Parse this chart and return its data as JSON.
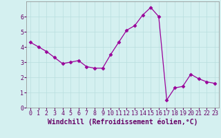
{
  "x": [
    0,
    1,
    2,
    3,
    4,
    5,
    6,
    7,
    8,
    9,
    10,
    11,
    12,
    13,
    14,
    15,
    16,
    17,
    18,
    19,
    20,
    21,
    22,
    23
  ],
  "y": [
    4.3,
    4.0,
    3.7,
    3.3,
    2.9,
    3.0,
    3.1,
    2.7,
    2.6,
    2.6,
    3.5,
    4.3,
    5.1,
    5.4,
    6.1,
    6.6,
    6.0,
    0.5,
    1.3,
    1.4,
    2.2,
    1.9,
    1.7,
    1.6
  ],
  "line_color": "#990099",
  "marker": "D",
  "marker_size": 2.5,
  "bg_color": "#d4f0f0",
  "grid_color": "#b8dede",
  "xlabel": "Windchill (Refroidissement éolien,°C)",
  "xlabel_fontsize": 7,
  "tick_fontsize": 6,
  "ylim": [
    0,
    7
  ],
  "xlim": [
    -0.5,
    23.5
  ],
  "yticks": [
    0,
    1,
    2,
    3,
    4,
    5,
    6
  ],
  "xticks": [
    0,
    1,
    2,
    3,
    4,
    5,
    6,
    7,
    8,
    9,
    10,
    11,
    12,
    13,
    14,
    15,
    16,
    17,
    18,
    19,
    20,
    21,
    22,
    23
  ],
  "label_color": "#660066",
  "spine_color": "#888888"
}
